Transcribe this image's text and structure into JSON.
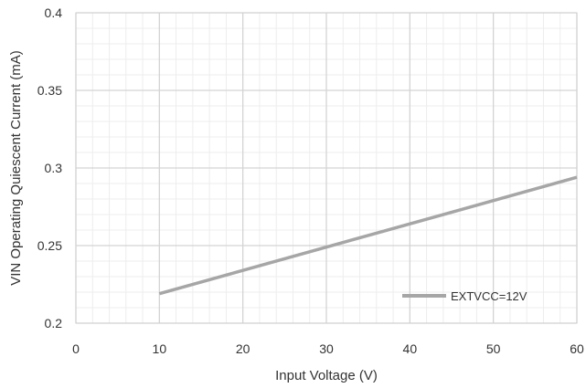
{
  "chart_data": {
    "type": "line",
    "xlabel": "Input Voltage (V)",
    "ylabel": "VIN Operating Quiescent Current (mA)",
    "xlim": [
      0,
      60
    ],
    "ylim": [
      0.2,
      0.4
    ],
    "x_ticks": [
      "0",
      "10",
      "20",
      "30",
      "40",
      "50",
      "60"
    ],
    "y_ticks": [
      "0.2",
      "0.25",
      "0.3",
      "0.35",
      "0.4"
    ],
    "grid": true,
    "legend_position": "bottom-right",
    "series": [
      {
        "name": "EXTVCC=12V",
        "color": "#a6a6a6",
        "x": [
          10,
          60
        ],
        "y": [
          0.219,
          0.294
        ]
      }
    ]
  }
}
